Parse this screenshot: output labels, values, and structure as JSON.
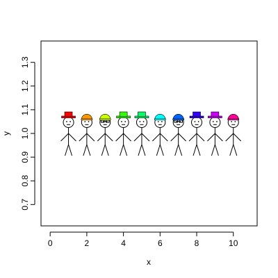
{
  "chart_data": {
    "type": "scatter",
    "title": "",
    "xlabel": "x",
    "ylabel": "y",
    "xlim": [
      -0.5,
      11.3
    ],
    "ylim": [
      0.61,
      1.39
    ],
    "x_ticks": [
      0,
      2,
      4,
      6,
      8,
      10
    ],
    "y_ticks": [
      0.7,
      0.8,
      0.9,
      1.0,
      1.1,
      1.2,
      1.3
    ],
    "x_tick_labels": [
      "0",
      "2",
      "4",
      "6",
      "8",
      "10"
    ],
    "y_tick_labels": [
      "0.7",
      "0.8",
      "0.9",
      "1.0",
      "1.1",
      "1.2",
      "1.3"
    ],
    "grid": false,
    "marker": "stick-figure-with-hat",
    "points": [
      {
        "x": 1,
        "y": 1.0,
        "hat_color": "#ff0000",
        "hat_style": "fedora",
        "glasses": false
      },
      {
        "x": 2,
        "y": 1.0,
        "hat_color": "#ff9900",
        "hat_style": "cap",
        "glasses": false
      },
      {
        "x": 3,
        "y": 1.0,
        "hat_color": "#ccff00",
        "hat_style": "cap",
        "glasses": true
      },
      {
        "x": 4,
        "y": 1.0,
        "hat_color": "#33ff00",
        "hat_style": "fedora",
        "glasses": false
      },
      {
        "x": 5,
        "y": 1.0,
        "hat_color": "#00ff66",
        "hat_style": "fedora",
        "glasses": false
      },
      {
        "x": 6,
        "y": 1.0,
        "hat_color": "#00ffff",
        "hat_style": "cap",
        "glasses": false
      },
      {
        "x": 7,
        "y": 1.0,
        "hat_color": "#0066ff",
        "hat_style": "cap",
        "glasses": true
      },
      {
        "x": 8,
        "y": 1.0,
        "hat_color": "#3300ff",
        "hat_style": "fedora",
        "glasses": false
      },
      {
        "x": 9,
        "y": 1.0,
        "hat_color": "#cc00ff",
        "hat_style": "fedora",
        "glasses": false
      },
      {
        "x": 10,
        "y": 1.0,
        "hat_color": "#ff0099",
        "hat_style": "cap",
        "glasses": false
      }
    ]
  }
}
